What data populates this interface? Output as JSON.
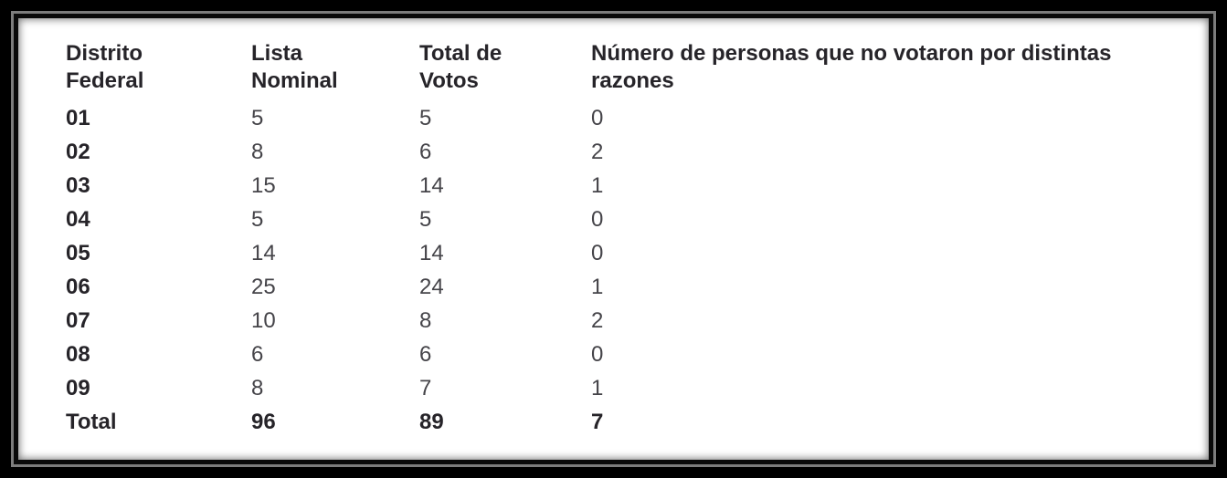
{
  "colors": {
    "frame_outer_black": "#000000",
    "frame_gray_band": "#7d7d7d",
    "frame_inner_black": "#0a0a0a",
    "background": "#ffffff",
    "header_text": "#262429",
    "value_text": "#454449"
  },
  "table": {
    "headers": {
      "district": "Distrito\nFederal",
      "lista_nominal": "Lista\nNominal",
      "total_votos": "Total de\nVotos",
      "no_votaron": "Número de personas que no votaron por distintas\nrazones"
    },
    "rows": [
      {
        "district": "01",
        "lista_nominal": "5",
        "total_votos": "5",
        "no_votaron": "0"
      },
      {
        "district": "02",
        "lista_nominal": "8",
        "total_votos": "6",
        "no_votaron": "2"
      },
      {
        "district": "03",
        "lista_nominal": "15",
        "total_votos": "14",
        "no_votaron": "1"
      },
      {
        "district": "04",
        "lista_nominal": "5",
        "total_votos": "5",
        "no_votaron": "0"
      },
      {
        "district": "05",
        "lista_nominal": "14",
        "total_votos": "14",
        "no_votaron": "0"
      },
      {
        "district": "06",
        "lista_nominal": "25",
        "total_votos": "24",
        "no_votaron": "1"
      },
      {
        "district": "07",
        "lista_nominal": "10",
        "total_votos": "8",
        "no_votaron": "2"
      },
      {
        "district": "08",
        "lista_nominal": "6",
        "total_votos": "6",
        "no_votaron": "0"
      },
      {
        "district": "09",
        "lista_nominal": "8",
        "total_votos": "7",
        "no_votaron": "1"
      }
    ],
    "total_row": {
      "label": "Total",
      "lista_nominal": "96",
      "total_votos": "89",
      "no_votaron": "7"
    }
  }
}
